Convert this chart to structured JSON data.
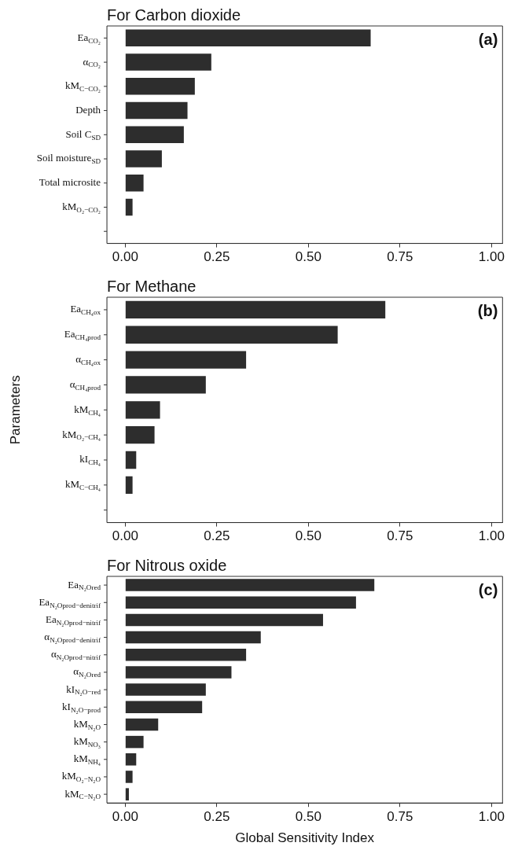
{
  "chart_data": [
    {
      "type": "bar",
      "orientation": "horizontal",
      "title": "For Carbon dioxide",
      "annotations": [
        "(a)"
      ],
      "categories": [
        "Ea$_{CO₂}$",
        "α$_{CO₂}$",
        "kM$_{C−CO₂}$",
        "Depth",
        "Soil C$_{SD}$",
        "Soil moisture$_{SD}$",
        "Total microsite",
        "kM$_{O₂−CO₂}$",
        null
      ],
      "values": [
        0.67,
        0.235,
        0.19,
        0.17,
        0.16,
        0.1,
        0.05,
        0.02,
        null
      ],
      "color": "#2d2d2d",
      "xlim": [
        -0.05,
        1.03
      ],
      "xticks": [
        {
          "value": 0,
          "label": "0.00"
        },
        {
          "value": 0.25,
          "label": "0.25"
        },
        {
          "value": 0.5,
          "label": "0.50"
        },
        {
          "value": 0.75,
          "label": "0.75"
        },
        {
          "value": 1,
          "label": "1.00"
        }
      ],
      "grid": false,
      "legend": false
    },
    {
      "type": "bar",
      "orientation": "horizontal",
      "title": "For Methane",
      "ylabel": "Parameters",
      "annotations": [
        "(b)"
      ],
      "categories": [
        "Ea$_{CH₄ox}$",
        "Ea$_{CH₄prod}$",
        "α$_{CH₄ox}$",
        "α$_{CH₄prod}$",
        "kM$_{CH₄}$",
        "kM$_{O₂−CH₄}$",
        "kI$_{CH₄}$",
        "kM$_{C−CH₄}$",
        null
      ],
      "values": [
        0.71,
        0.58,
        0.33,
        0.22,
        0.095,
        0.08,
        0.03,
        0.02,
        null
      ],
      "color": "#2d2d2d",
      "xlim": [
        -0.05,
        1.03
      ],
      "xticks": [
        {
          "value": 0,
          "label": "0.00"
        },
        {
          "value": 0.25,
          "label": "0.25"
        },
        {
          "value": 0.5,
          "label": "0.50"
        },
        {
          "value": 0.75,
          "label": "0.75"
        },
        {
          "value": 1,
          "label": "1.00"
        }
      ],
      "grid": false,
      "legend": false
    },
    {
      "type": "bar",
      "orientation": "horizontal",
      "title": "For Nitrous oxide",
      "xlabel": "Global Sensitivity Index",
      "annotations": [
        "(c)"
      ],
      "categories": [
        "Ea$_{N₂Ored}$",
        "Ea$_{N₂Oprod−denitrif}$",
        "Ea$_{N₂Oprod−nitrif}$",
        "α$_{N₂Oprod−denitrif}$",
        "α$_{N₂Oprod−nitrif}$",
        "α$_{N₂Ored}$",
        "kI$_{N₂O−red}$",
        "kI$_{N₂O−prod}$",
        "kM$_{N₂O}$",
        "kM$_{NO₃}$",
        "kM$_{NH₄}$",
        "kM$_{O₂−N₂O}$",
        "kM$_{C−N₂O}$"
      ],
      "values": [
        0.68,
        0.63,
        0.54,
        0.37,
        0.33,
        0.29,
        0.22,
        0.21,
        0.09,
        0.05,
        0.03,
        0.02,
        0.01
      ],
      "color": "#2d2d2d",
      "xlim": [
        -0.05,
        1.03
      ],
      "xticks": [
        {
          "value": 0,
          "label": "0.00"
        },
        {
          "value": 0.25,
          "label": "0.25"
        },
        {
          "value": 0.5,
          "label": "0.50"
        },
        {
          "value": 0.75,
          "label": "0.75"
        },
        {
          "value": 1,
          "label": "1.00"
        }
      ],
      "grid": false,
      "legend": false
    }
  ]
}
